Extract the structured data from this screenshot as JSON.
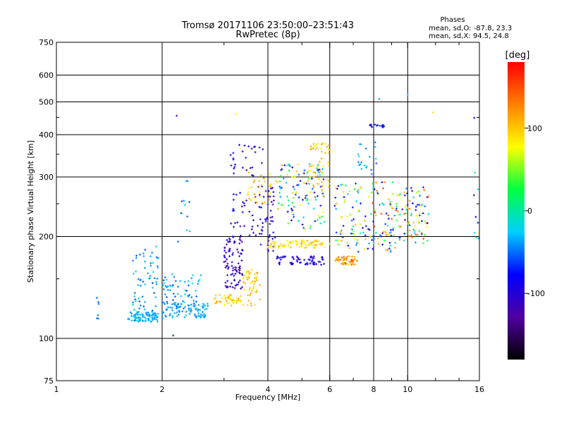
{
  "chart_data": {
    "type": "scatter",
    "title": "Tromsø 20171106 23:50:00–23:51:43",
    "subtitle": "RwPretec (8p)",
    "xlabel": "Frequency [MHz]",
    "ylabel": "Stationary phase Virtual Height [km]",
    "x_scale": "log",
    "y_scale": "log",
    "xlim": [
      1,
      16
    ],
    "ylim": [
      75,
      750
    ],
    "x_ticks": [
      1,
      2,
      4,
      6,
      8,
      10,
      16
    ],
    "y_ticks": [
      75,
      100,
      200,
      300,
      400,
      500,
      600,
      750
    ],
    "x_ticks_minor": [
      3,
      5,
      7,
      9,
      12,
      14
    ],
    "y_ticks_minor": [
      150,
      250,
      350,
      450
    ],
    "grid": true,
    "phases": {
      "heading": "Phases",
      "line_o": "mean, sd,O:  -87.8, 23.3",
      "line_x": "mean, sd,X:  94.5, 24.8"
    },
    "colorbar": {
      "label": "[deg]",
      "range": [
        -180,
        180
      ],
      "ticks": [
        100,
        0,
        -100
      ],
      "colormap": [
        "#000000",
        "#5000a0",
        "#0000ff",
        "#00d0ff",
        "#00ff40",
        "#ffff00",
        "#ff8000",
        "#ff0000"
      ]
    },
    "clusters": [
      {
        "x": [
          1.3,
          1.32
        ],
        "y": [
          110,
          135
        ],
        "phase": [
          -50,
          -50
        ],
        "n": 6
      },
      {
        "x": [
          1.6,
          1.95
        ],
        "y": [
          112,
          120
        ],
        "phase": [
          -45,
          -25
        ],
        "n": 90
      },
      {
        "x": [
          1.65,
          1.95
        ],
        "y": [
          120,
          190
        ],
        "phase": [
          -60,
          -20
        ],
        "n": 60
      },
      {
        "x": [
          2.0,
          2.7
        ],
        "y": [
          115,
          128
        ],
        "phase": [
          -50,
          -25
        ],
        "n": 100
      },
      {
        "x": [
          2.0,
          2.6
        ],
        "y": [
          128,
          155
        ],
        "phase": [
          -60,
          -20
        ],
        "n": 50
      },
      {
        "x": [
          2.2,
          2.4
        ],
        "y": [
          190,
          300
        ],
        "phase": [
          -60,
          -20
        ],
        "n": 12
      },
      {
        "x": [
          2.8,
          3.4
        ],
        "y": [
          125,
          135
        ],
        "phase": [
          80,
          120
        ],
        "n": 40
      },
      {
        "x": [
          3.0,
          3.4
        ],
        "y": [
          140,
          200
        ],
        "phase": [
          -130,
          -90
        ],
        "n": 90
      },
      {
        "x": [
          3.4,
          3.8
        ],
        "y": [
          125,
          160
        ],
        "phase": [
          80,
          120
        ],
        "n": 50
      },
      {
        "x": [
          3.1,
          3.9
        ],
        "y": [
          200,
          380
        ],
        "phase": [
          -120,
          -70
        ],
        "n": 70
      },
      {
        "x": [
          3.5,
          4.1
        ],
        "y": [
          250,
          310
        ],
        "phase": [
          80,
          130
        ],
        "n": 30
      },
      {
        "x": [
          3.8,
          4.2
        ],
        "y": [
          180,
          280
        ],
        "phase": [
          -130,
          -80
        ],
        "n": 40
      },
      {
        "x": [
          4.0,
          6.0
        ],
        "y": [
          185,
          195
        ],
        "phase": [
          70,
          110
        ],
        "n": 80
      },
      {
        "x": [
          4.2,
          5.8
        ],
        "y": [
          165,
          175
        ],
        "phase": [
          -110,
          -80
        ],
        "n": 60
      },
      {
        "x": [
          4.2,
          5.8
        ],
        "y": [
          210,
          330
        ],
        "phase": [
          -120,
          120
        ],
        "n": 120
      },
      {
        "x": [
          5.2,
          6.0
        ],
        "y": [
          270,
          380
        ],
        "phase": [
          80,
          120
        ],
        "n": 50
      },
      {
        "x": [
          6.2,
          7.2
        ],
        "y": [
          165,
          175
        ],
        "phase": [
          90,
          150
        ],
        "n": 50
      },
      {
        "x": [
          6.2,
          8.0
        ],
        "y": [
          180,
          290
        ],
        "phase": [
          -110,
          120
        ],
        "n": 80
      },
      {
        "x": [
          7.2,
          8.2
        ],
        "y": [
          300,
          380
        ],
        "phase": [
          -60,
          -20
        ],
        "n": 20
      },
      {
        "x": [
          7.8,
          8.6
        ],
        "y": [
          420,
          430
        ],
        "phase": [
          -100,
          -60
        ],
        "n": 14
      },
      {
        "x": [
          7.8,
          9.4
        ],
        "y": [
          180,
          290
        ],
        "phase": [
          -120,
          160
        ],
        "n": 80
      },
      {
        "x": [
          9.4,
          11.5
        ],
        "y": [
          190,
          280
        ],
        "phase": [
          -130,
          160
        ],
        "n": 80
      },
      {
        "x": [
          15.4,
          16.0
        ],
        "y": [
          180,
          460
        ],
        "phase": [
          -120,
          120
        ],
        "n": 10
      },
      {
        "x": [
          2.15,
          2.2
        ],
        "y": [
          102,
          105
        ],
        "phase": [
          -70,
          -70
        ],
        "n": 1
      },
      {
        "x": [
          2.2,
          2.2
        ],
        "y": [
          455,
          455
        ],
        "phase": [
          -120,
          -120
        ],
        "n": 1
      },
      {
        "x": [
          8.3,
          8.3
        ],
        "y": [
          510,
          510
        ],
        "phase": [
          -40,
          -40
        ],
        "n": 1
      },
      {
        "x": [
          10.0,
          10.0
        ],
        "y": [
          525,
          525
        ],
        "phase": [
          -20,
          -20
        ],
        "n": 1
      },
      {
        "x": [
          11.8,
          11.8
        ],
        "y": [
          465,
          465
        ],
        "phase": [
          90,
          90
        ],
        "n": 1
      },
      {
        "x": [
          3.25,
          3.25
        ],
        "y": [
          460,
          460
        ],
        "phase": [
          80,
          80
        ],
        "n": 1
      }
    ]
  }
}
